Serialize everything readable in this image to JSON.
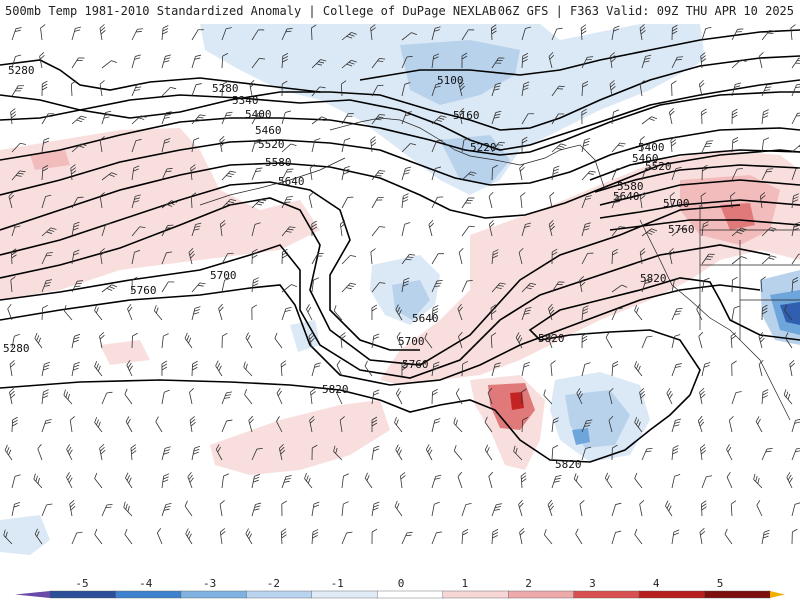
{
  "header": {
    "title_left": "500mb Temp 1981-2010 Standardized Anomaly | College of DuPage NEXLAB",
    "title_right": "06Z GFS | F363 Valid: 09Z THU APR 10 2025"
  },
  "contour_labels": [
    {
      "id": "c5280a",
      "text": "5280"
    },
    {
      "id": "c5280b",
      "text": "5280"
    },
    {
      "id": "c5280c",
      "text": "5280"
    },
    {
      "id": "c5340",
      "text": "5340"
    },
    {
      "id": "c5400a",
      "text": "5400"
    },
    {
      "id": "c5460a",
      "text": "5460"
    },
    {
      "id": "c5520a",
      "text": "5520"
    },
    {
      "id": "c5580a",
      "text": "5580"
    },
    {
      "id": "c5640a",
      "text": "5640"
    },
    {
      "id": "c5700a",
      "text": "5700"
    },
    {
      "id": "c5760a",
      "text": "5760"
    },
    {
      "id": "c5100",
      "text": "5100"
    },
    {
      "id": "c5160",
      "text": "5160"
    },
    {
      "id": "c5220",
      "text": "5220"
    },
    {
      "id": "c5640b",
      "text": "5640"
    },
    {
      "id": "c5700b",
      "text": "5700"
    },
    {
      "id": "c5760b",
      "text": "5760"
    },
    {
      "id": "c5820a",
      "text": "5820"
    },
    {
      "id": "c5820b",
      "text": "5820"
    },
    {
      "id": "c5820c",
      "text": "5820"
    },
    {
      "id": "c5820d",
      "text": "5820"
    },
    {
      "id": "c5400b",
      "text": "5400"
    },
    {
      "id": "c5460b",
      "text": "5460"
    },
    {
      "id": "c5520b",
      "text": "5520"
    },
    {
      "id": "c5580b",
      "text": "5580"
    },
    {
      "id": "c5640c",
      "text": "5640"
    },
    {
      "id": "c5700c",
      "text": "5700"
    },
    {
      "id": "c5760c",
      "text": "5760"
    }
  ],
  "colorbar": {
    "ticks": [
      "-5",
      "-4",
      "-3",
      "-2",
      "-1",
      "0",
      "1",
      "2",
      "3",
      "4",
      "5"
    ],
    "colors": [
      "#6a4aa8",
      "#2c4f9a",
      "#3e82cf",
      "#7fb2e0",
      "#b9d4ee",
      "#e0ebf7",
      "#ffffff",
      "#f7d6d6",
      "#eeaaaa",
      "#d85050",
      "#b82020",
      "#7d0f0f",
      "#f0b000"
    ]
  },
  "anomaly_colors": {
    "neg_light": "#dbe8f5",
    "neg_mid": "#b8d2ec",
    "neg_strong": "#6ea6dc",
    "neg_deep": "#2f5fae",
    "pos_light": "#f9dede",
    "pos_mid": "#f2bcbc",
    "pos_strong": "#e07a7a",
    "pos_deep": "#c42323"
  }
}
